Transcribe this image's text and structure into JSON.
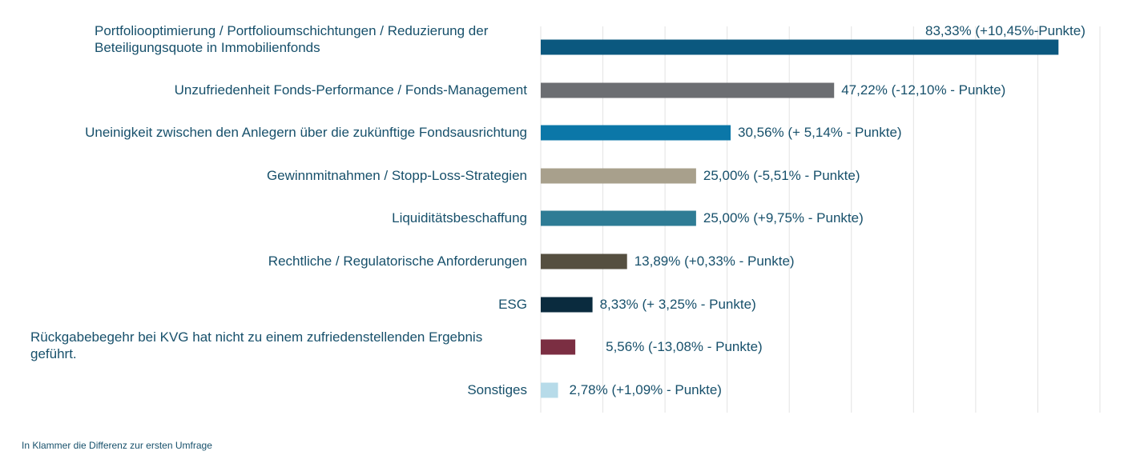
{
  "chart_data": {
    "type": "bar",
    "orientation": "horizontal",
    "xlim": [
      0,
      90
    ],
    "grid": true,
    "categories": [
      "Portfoliooptimierung / Portfolioumschichtungen / Reduzierung der Beteiligungsquote in Immobilienfonds",
      "Unzufriedenheit Fonds-Performance / Fonds-Management",
      "Uneinigkeit zwischen den Anlegern über die zukünftige Fondsausrichtung",
      "Gewinnmitnahmen / Stopp-Loss-Strategien",
      "Liquiditätsbeschaffung",
      "Rechtliche / Regulatorische Anforderungen",
      "ESG",
      "Rückgabebegehr bei KVG hat nicht zu einem zufriedenstellenden Ergebnis geführt.",
      "Sonstiges"
    ],
    "values": [
      83.33,
      47.22,
      30.56,
      25.0,
      25.0,
      13.89,
      8.33,
      5.56,
      2.78
    ],
    "data_labels": [
      "83,33% (+10,45%-Punkte)",
      "47,22% (-12,10% - Punkte)",
      "30,56% (+ 5,14% - Punkte)",
      "25,00% (-5,51% - Punkte)",
      "25,00% (+9,75% - Punkte)",
      "13,89% (+0,33% - Punkte)",
      "8,33% (+ 3,25% - Punkte)",
      "5,56% (-13,08% - Punkte)",
      "2,78% (+1,09% - Punkte)"
    ],
    "colors": [
      "#0b587f",
      "#6c6e72",
      "#0b77a8",
      "#a8a08c",
      "#2e7c95",
      "#554f40",
      "#0a2b3e",
      "#7b2e42",
      "#b7dbe9"
    ]
  },
  "footnote": "In Klammer die Differenz zur ersten Umfrage"
}
